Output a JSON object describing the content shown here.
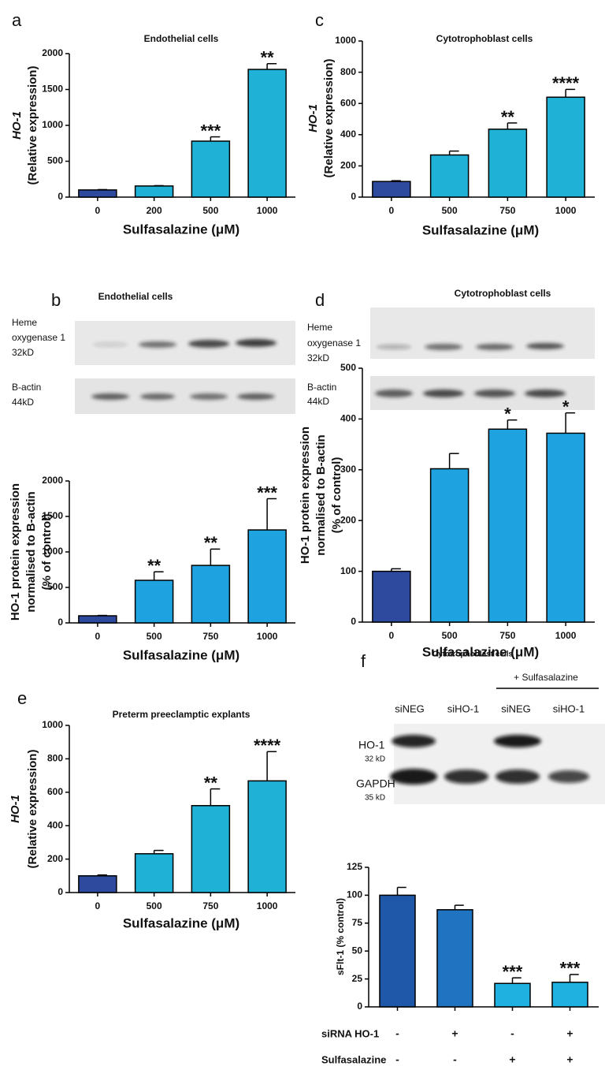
{
  "chart_data": [
    {
      "type": "bar",
      "panel": "a",
      "title": "Endothelial cells",
      "ylabel": [
        "HO-1",
        "(Relative expression)"
      ],
      "xlabel": "Sulfasalazine (μM)",
      "categories": [
        "0",
        "200",
        "500",
        "1000"
      ],
      "values": [
        100,
        155,
        780,
        1780
      ],
      "errors": [
        5,
        5,
        60,
        80
      ],
      "annotations": [
        null,
        null,
        "***",
        "**"
      ],
      "colors": [
        "#2e4a9e",
        "#1fb2d6",
        "#1fb2d6",
        "#1fb2d6"
      ],
      "ylim": [
        0,
        2000
      ],
      "yticks": [
        0,
        500,
        1000,
        1500,
        2000
      ]
    },
    {
      "type": "bar",
      "panel": "c",
      "title": "Cytotrophoblast cells",
      "ylabel": [
        "HO-1",
        "(Relative expression)"
      ],
      "xlabel": "Sulfasalazine (μM)",
      "categories": [
        "0",
        "500",
        "750",
        "1000"
      ],
      "values": [
        100,
        270,
        435,
        640
      ],
      "errors": [
        5,
        25,
        40,
        50
      ],
      "annotations": [
        null,
        null,
        "**",
        "****"
      ],
      "colors": [
        "#2e4a9e",
        "#1fb2d6",
        "#1fb2d6",
        "#1fb2d6"
      ],
      "ylim": [
        0,
        1000
      ],
      "yticks": [
        0,
        200,
        400,
        600,
        800,
        1000
      ]
    },
    {
      "type": "bar",
      "ylabel": [
        "HO-1 protein expression",
        "normalised to B-actin",
        "(% of control)"
      ],
      "xlabel": "Sulfasalazine (μM)",
      "categories": [
        "0",
        "500",
        "750",
        "1000"
      ],
      "values": [
        100,
        600,
        810,
        1310
      ],
      "errors": [
        5,
        120,
        230,
        440
      ],
      "annotations": [
        null,
        "**",
        "**",
        "***"
      ],
      "colors": [
        "#2e4a9e",
        "#1ea3e0",
        "#1ea3e0",
        "#1ea3e0"
      ],
      "ylim": [
        0,
        2000
      ],
      "yticks": [
        0,
        500,
        1000,
        1500,
        2000
      ]
    },
    {
      "type": "bar",
      "ylabel": [
        "HO-1 protein expression",
        "normalised to B-actin",
        "(% of control)"
      ],
      "xlabel": "Sulfasalazine (μM)",
      "categories": [
        "0",
        "500",
        "750",
        "1000"
      ],
      "values": [
        100,
        302,
        380,
        372
      ],
      "errors": [
        5,
        30,
        18,
        40
      ],
      "annotations": [
        null,
        null,
        "*",
        "*"
      ],
      "colors": [
        "#2e4a9e",
        "#1ea3e0",
        "#1ea3e0",
        "#1ea3e0"
      ],
      "ylim": [
        0,
        500
      ],
      "yticks": [
        0,
        100,
        200,
        300,
        400,
        500
      ]
    },
    {
      "type": "bar",
      "panel": "e",
      "title": "Preterm preeclamptic explants",
      "ylabel": [
        "HO-1",
        "(Relative expression)"
      ],
      "xlabel": "Sulfasalazine (μM)",
      "categories": [
        "0",
        "500",
        "750",
        "1000"
      ],
      "values": [
        100,
        232,
        520,
        668
      ],
      "errors": [
        5,
        20,
        100,
        175
      ],
      "annotations": [
        null,
        null,
        "**",
        "****"
      ],
      "colors": [
        "#2e4a9e",
        "#1fb2d6",
        "#1fb2d6",
        "#1fb2d6"
      ],
      "ylim": [
        0,
        1000
      ],
      "yticks": [
        0,
        200,
        400,
        600,
        800,
        1000
      ]
    },
    {
      "type": "bar",
      "ylabel": [
        "sFlt-1 (% control)"
      ],
      "categories": [
        null,
        null,
        null,
        null
      ],
      "values": [
        100,
        87,
        21,
        22
      ],
      "errors": [
        7,
        4,
        5,
        7
      ],
      "annotations": [
        null,
        null,
        "***",
        "***"
      ],
      "colors": [
        "#1f58a8",
        "#1f73c0",
        "#1fb2e0",
        "#1fb2e0"
      ],
      "ylim": [
        0,
        125
      ],
      "yticks": [
        0,
        25,
        50,
        75,
        100,
        125
      ],
      "conditions": [
        {
          "name": "siRNA HO-1",
          "values": [
            "-",
            "+",
            "-",
            "+"
          ]
        },
        {
          "name": "Sulfasalazine",
          "values": [
            "-",
            "-",
            "+",
            "+"
          ]
        }
      ]
    }
  ],
  "blots": [
    {
      "panel": "b",
      "title": "Endothelial cells",
      "rows": [
        [
          "Heme",
          "oxygenase 1",
          "32kD"
        ],
        [
          "B-actin",
          "44kD"
        ]
      ]
    },
    {
      "panel": "d",
      "title": "Cytotrophoblast cells",
      "rows": [
        [
          "Heme",
          "oxygenase 1",
          "32kD"
        ],
        [
          "B-actin",
          "44kD"
        ]
      ]
    },
    {
      "panel": "f",
      "title": "Cytotrophoblast cells",
      "group": "+ Sulfasalazine",
      "lanes": [
        "siNEG",
        "siHO-1",
        "siNEG",
        "siHO-1"
      ],
      "rows": [
        [
          "HO-1",
          "32 kD"
        ],
        [
          "GAPDH",
          "35 kD"
        ]
      ]
    }
  ]
}
